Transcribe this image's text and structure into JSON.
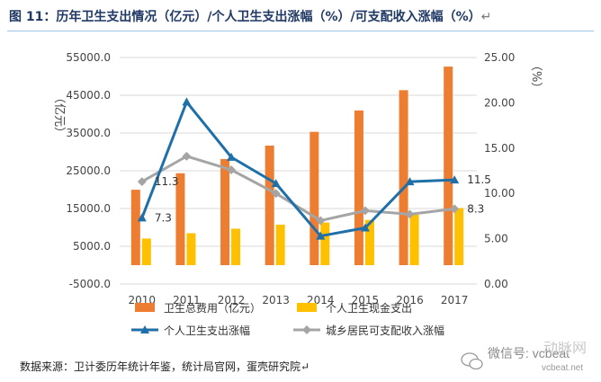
{
  "header": {
    "title": "图 11：历年卫生支出情况（亿元）/个人卫生支出涨幅（%）/可支配收入涨幅（%）",
    "title_mark": "↵"
  },
  "chart_data": {
    "type": "bar+line",
    "categories": [
      "2010",
      "2011",
      "2012",
      "2013",
      "2014",
      "2015",
      "2016",
      "2017"
    ],
    "left_axis": {
      "label": "（亿元）",
      "ticks": [
        "55000.0",
        "45000.0",
        "35000.0",
        "25000.0",
        "15000.0",
        "5000.0",
        "-5000.0"
      ],
      "range": [
        -5000,
        55000
      ]
    },
    "right_axis": {
      "label": "（%）",
      "ticks": [
        "25.00",
        "20.00",
        "15.00",
        "10.00",
        "5.00",
        "0.00"
      ],
      "range": [
        0,
        25
      ]
    },
    "series": [
      {
        "name": "卫生总费用（亿元）",
        "axis": "left",
        "kind": "bar",
        "color": "#ed7d31",
        "values": [
          19980,
          24346,
          28119,
          31669,
          35312,
          40975,
          46345,
          52598
        ]
      },
      {
        "name": "个人卫生现金支出",
        "axis": "left",
        "kind": "bar",
        "color": "#ffc000",
        "values": [
          7051,
          8465,
          9656,
          10730,
          11295,
          11992,
          13337,
          15133
        ]
      },
      {
        "name": "个人卫生支出涨幅",
        "axis": "right",
        "kind": "line",
        "color": "#1f6fa8",
        "values": [
          7.3,
          20.1,
          14.0,
          11.1,
          5.3,
          6.2,
          11.3,
          11.5
        ]
      },
      {
        "name": "城乡居民可支配收入涨幅",
        "axis": "right",
        "kind": "line",
        "color": "#a5a5a5",
        "values": [
          11.3,
          14.1,
          12.6,
          10.0,
          7.0,
          8.1,
          7.7,
          8.3
        ]
      }
    ],
    "data_labels": [
      {
        "series": 2,
        "index": 0,
        "text": "7.3"
      },
      {
        "series": 3,
        "index": 0,
        "text": "11.3"
      },
      {
        "series": 2,
        "index": 7,
        "text": "11.5"
      },
      {
        "series": 3,
        "index": 7,
        "text": "8.3"
      }
    ],
    "legend_position": "bottom"
  },
  "source": {
    "text": "数据来源：卫计委历年统计年鉴，统计局官网，蛋壳研究院↵"
  },
  "watermark": {
    "brand": "动脉网",
    "wechat": "微信号: vcbeat",
    "site": "vcbeat.net"
  }
}
